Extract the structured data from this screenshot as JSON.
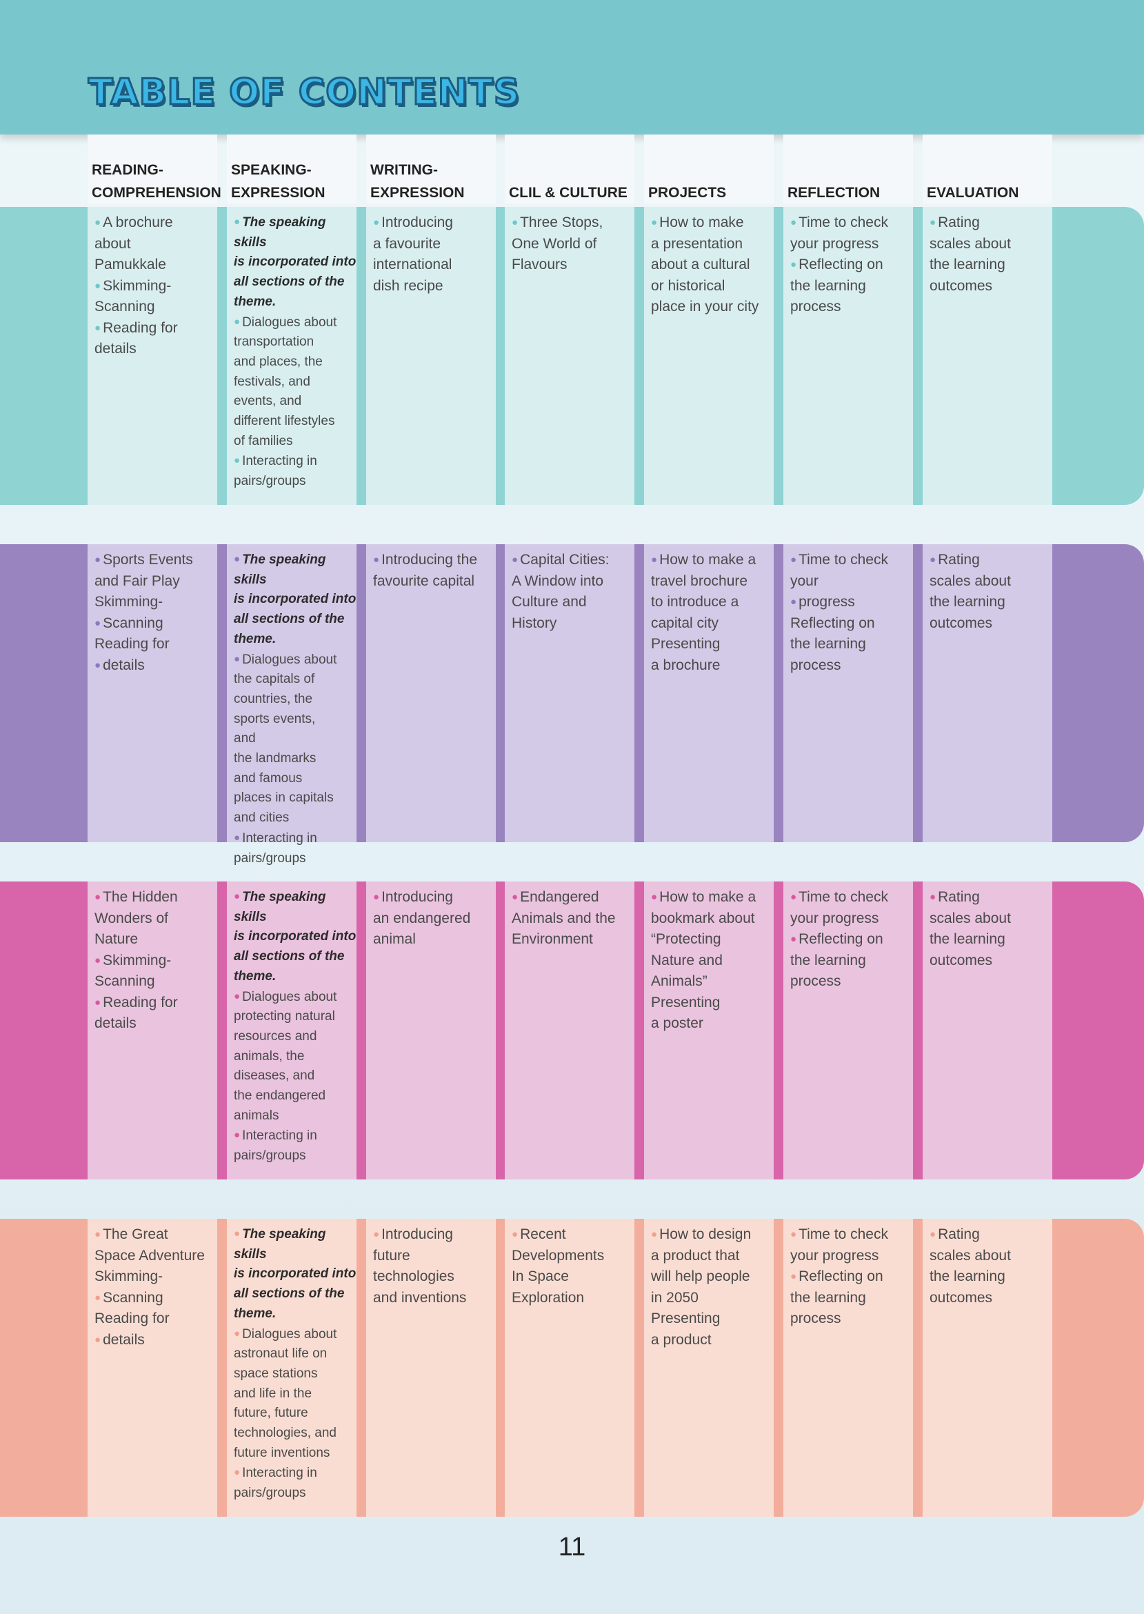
{
  "title": "TABLE OF CONTENTS",
  "page_number": "11",
  "columns": [
    "READING-\nCOMPREHENSION",
    "SPEAKING-\nEXPRESSION",
    "WRITING-\nEXPRESSION",
    "CLIL & CULTURE",
    "PROJECTS",
    "REFLECTION",
    "EVALUATION"
  ],
  "colors": {
    "teal_band": "#8fd3d3",
    "teal_cell": "#d9eeef",
    "teal_dot": "#6fc7c7",
    "purple_band": "#9a84c0",
    "purple_cell": "#d3cae7",
    "purple_dot": "#8c78bb",
    "pink_band": "#d865a9",
    "pink_cell": "#eac3de",
    "pink_dot": "#d8589f",
    "salmon_band": "#f2ad9d",
    "salmon_cell": "#f9ddd3",
    "salmon_dot": "#f1a08d"
  },
  "rows": [
    {
      "cells": [
        [
          "A brochure",
          "about",
          "Pamukkale",
          "Skimming-",
          "Scanning",
          "Reading for",
          "details"
        ],
        [
          "The speaking skills",
          "is incorporated into",
          "all sections of the",
          "theme.",
          "Dialogues about",
          "transportation",
          "and places, the",
          "festivals, and",
          "events, and",
          "different lifestyles",
          "of families",
          "Interacting in",
          "pairs/groups"
        ],
        [
          "Introducing",
          "a favourite",
          "international",
          "dish recipe"
        ],
        [
          "Three Stops,",
          "One World of",
          "Flavours"
        ],
        [
          "How to make",
          "a presentation",
          "about a cultural",
          "or historical",
          "place in your city"
        ],
        [
          "Time to check",
          "your progress",
          "Reflecting on",
          "the learning",
          "process"
        ],
        [
          "Rating",
          "scales about",
          "the learning",
          "outcomes"
        ]
      ]
    },
    {
      "cells": [
        [
          "Sports Events",
          "and Fair Play",
          "Skimming-",
          "Scanning",
          "Reading for",
          "details"
        ],
        [
          "The speaking skills",
          "is incorporated into",
          "all sections of the",
          "theme.",
          "Dialogues about",
          "the capitals of",
          "countries, the",
          "sports events,",
          "and",
          "the landmarks",
          "and famous",
          "places in capitals",
          "and cities",
          "Interacting in",
          "pairs/groups"
        ],
        [
          "Introducing the",
          "favourite capital"
        ],
        [
          "Capital Cities:",
          "A Window into",
          "Culture and",
          "History"
        ],
        [
          "How to make a",
          "travel brochure",
          "to introduce a",
          "capital city",
          "Presenting",
          "a brochure"
        ],
        [
          "Time to check",
          "your",
          "progress",
          "Reflecting on",
          "the learning",
          "process"
        ],
        [
          "Rating",
          "scales about",
          "the learning",
          "outcomes"
        ]
      ]
    },
    {
      "cells": [
        [
          "The Hidden",
          "Wonders of",
          "Nature",
          "Skimming-",
          "Scanning",
          "Reading for",
          "details"
        ],
        [
          "The speaking skills",
          "is incorporated into",
          "all sections of the",
          "theme.",
          "Dialogues about",
          "protecting natural",
          "resources and",
          "animals, the",
          "diseases, and",
          "the endangered",
          "animals",
          "Interacting in",
          "pairs/groups"
        ],
        [
          "Introducing",
          "an endangered",
          "animal"
        ],
        [
          "Endangered",
          "Animals and the",
          "Environment"
        ],
        [
          "How to make a",
          "bookmark about",
          "“Protecting",
          "Nature and",
          "Animals”",
          "Presenting",
          "a poster"
        ],
        [
          "Time to check",
          "your progress",
          "Reflecting on",
          "the learning",
          "process"
        ],
        [
          "Rating",
          "scales about",
          "the learning",
          "outcomes"
        ]
      ]
    },
    {
      "cells": [
        [
          "The Great",
          "Space Adventure",
          "Skimming-",
          "Scanning",
          "Reading for",
          "details"
        ],
        [
          "The speaking skills",
          "is incorporated into",
          "all sections of the",
          "theme.",
          "Dialogues about",
          "astronaut life on",
          "space stations",
          "and life in the",
          "future, future",
          "technologies, and",
          "future inventions",
          "Interacting in",
          "pairs/groups"
        ],
        [
          "Introducing",
          "future",
          "technologies",
          "and inventions"
        ],
        [
          "Recent",
          "Developments",
          "In Space",
          "Exploration"
        ],
        [
          "How to design",
          "a product that",
          "will help people",
          "in 2050",
          "Presenting",
          "a product"
        ],
        [
          "Time to check",
          "your progress",
          "Reflecting on",
          "the learning",
          "process"
        ],
        [
          "Rating",
          "scales about",
          "the learning",
          "outcomes"
        ]
      ]
    }
  ]
}
